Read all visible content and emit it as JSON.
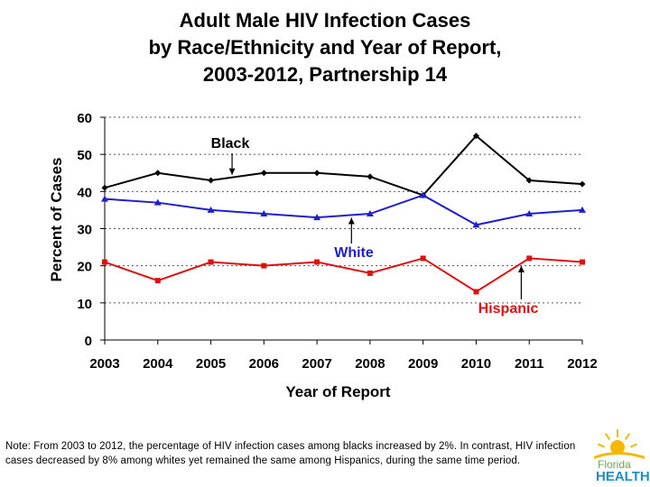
{
  "title_lines": [
    "Adult Male HIV Infection Cases",
    "by Race/Ethnicity and Year of Report,",
    "2003-2012, Partnership 14"
  ],
  "chart_data": {
    "type": "line",
    "title": "Adult Male HIV Infection Cases by Race/Ethnicity and Year of Report, 2003-2012, Partnership 14",
    "xlabel": "Year of Report",
    "ylabel": "Percent of Cases",
    "x": [
      "2003",
      "2004",
      "2005",
      "2006",
      "2007",
      "2008",
      "2009",
      "2010",
      "2011",
      "2012"
    ],
    "yticks": [
      "0",
      "10",
      "20",
      "30",
      "40",
      "50",
      "60"
    ],
    "ylim": [
      0,
      60
    ],
    "grid": "horizontal dotted",
    "series": [
      {
        "name": "Black",
        "color": "#000000",
        "marker": "diamond",
        "values": [
          41,
          45,
          43,
          45,
          45,
          44,
          39,
          55,
          43,
          42
        ]
      },
      {
        "name": "White",
        "color": "#1f1fcc",
        "marker": "triangle",
        "values": [
          38,
          37,
          35,
          34,
          33,
          34,
          39,
          31,
          34,
          35
        ]
      },
      {
        "name": "Hispanic",
        "color": "#dd1111",
        "marker": "square",
        "values": [
          21,
          16,
          21,
          20,
          21,
          18,
          22,
          13,
          22,
          21
        ]
      }
    ],
    "annotations": [
      {
        "text": "Black",
        "series": "Black",
        "color": "#000000"
      },
      {
        "text": "White",
        "series": "White",
        "color": "#1f1fcc"
      },
      {
        "text": "Hispanic",
        "series": "Hispanic",
        "color": "#dd1111"
      }
    ]
  },
  "note": "Note: From 2003 to 2012, the percentage of HIV infection cases among blacks increased by 2%. In contrast, HIV infection cases decreased by 8% among whites yet remained the same among Hispanics, during the same time period.",
  "logo": {
    "line1": "Florida",
    "line2": "HEALTH"
  }
}
